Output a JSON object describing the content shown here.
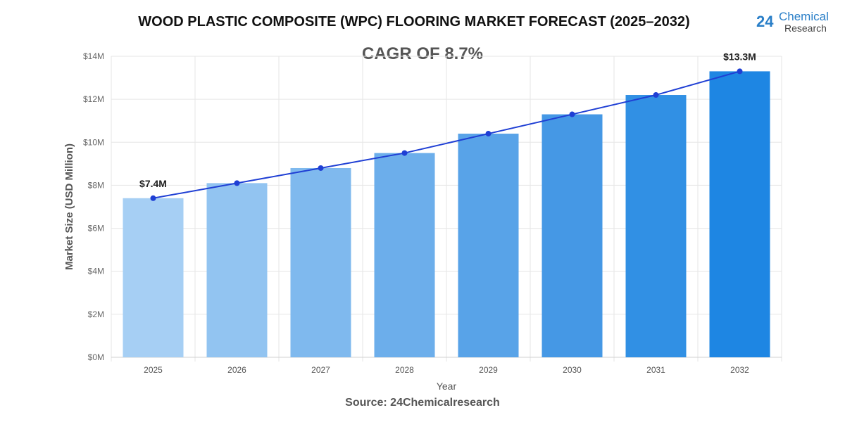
{
  "chart_data": {
    "type": "bar",
    "title": "WOOD PLASTIC COMPOSITE (WPC) FLOORING MARKET FORECAST (2025–2032)",
    "subtitle": "CAGR OF 8.7%",
    "xlabel": "Year",
    "ylabel": "Market Size (USD Million)",
    "categories": [
      "2025",
      "2026",
      "2027",
      "2028",
      "2029",
      "2030",
      "2031",
      "2032"
    ],
    "values": [
      7.4,
      8.1,
      8.8,
      9.5,
      10.4,
      11.3,
      12.2,
      13.3
    ],
    "overlay_line": true,
    "ylim": [
      0,
      14
    ],
    "yticks": [
      "$0M",
      "$2M",
      "$4M",
      "$6M",
      "$8M",
      "$10M",
      "$12M",
      "$14M"
    ],
    "data_labels": [
      {
        "index": 0,
        "text": "$7.4M"
      },
      {
        "index": 7,
        "text": "$13.3M"
      }
    ],
    "grid": true,
    "bar_colors": [
      "#a6cff4",
      "#92c4f1",
      "#7fb9ee",
      "#6caeeb",
      "#58a3e8",
      "#4598e5",
      "#3190e4",
      "#1e86e3"
    ],
    "line_color": "#1f3fd4"
  },
  "logo": {
    "number": "24",
    "line1": "Chemical",
    "line2": "Research"
  },
  "source": "Source: 24Chemicalresearch"
}
